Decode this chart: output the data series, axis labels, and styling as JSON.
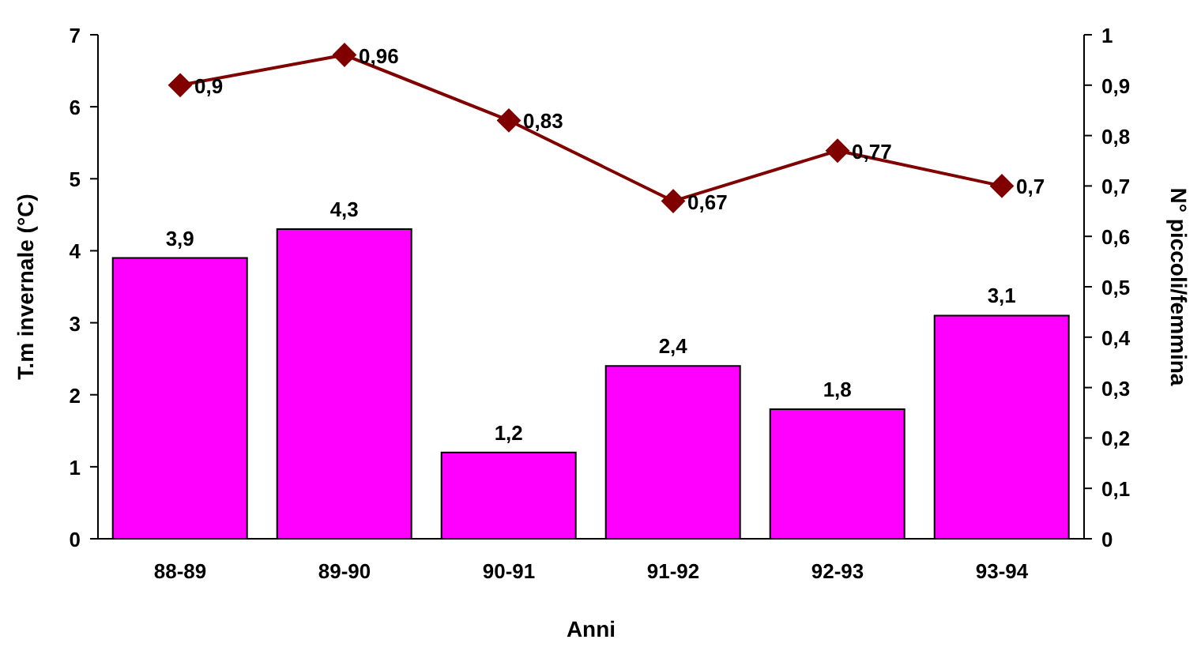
{
  "chart_data": {
    "type": "bar",
    "xlabel": "Anni",
    "ylabel": "T.m invernale (°C)",
    "y2label": "N° piccoli/femmina",
    "categories": [
      "88-89",
      "89-90",
      "90-91",
      "91-92",
      "92-93",
      "93-94"
    ],
    "series": [
      {
        "color": "#ff00ff",
        "values": [
          3.9,
          4.3,
          1.2,
          2.4,
          1.8,
          3.1
        ],
        "value_labels": [
          "3,9",
          "4,3",
          "1,2",
          "2,4",
          "1,8",
          "3,1"
        ]
      },
      {
        "type": "line",
        "axis": "y2",
        "color": "#800000",
        "marker": "diamond",
        "values": [
          0.9,
          0.96,
          0.83,
          0.67,
          0.77,
          0.7
        ],
        "value_labels": [
          "0,9",
          "0,96",
          "0,83",
          "0,67",
          "0,77",
          "0,7"
        ]
      }
    ],
    "ylim": [
      0,
      7
    ],
    "yticks": [
      0,
      1,
      2,
      3,
      4,
      5,
      6,
      7
    ],
    "y2lim": [
      0,
      1
    ],
    "y2ticks": [
      0,
      {
        "value": 0.1,
        "label": "0,1"
      },
      {
        "value": 0.2,
        "label": "0,2"
      },
      {
        "value": 0.3,
        "label": "0,3"
      },
      {
        "value": 0.4,
        "label": "0,4"
      },
      {
        "value": 0.5,
        "label": "0,5"
      },
      {
        "value": 0.6,
        "label": "0,6"
      },
      {
        "value": 0.7,
        "label": "0,7"
      },
      {
        "value": 0.8,
        "label": "0,8"
      },
      {
        "value": 0.9,
        "label": "0,9"
      },
      1
    ],
    "grid": false,
    "legend": false
  }
}
